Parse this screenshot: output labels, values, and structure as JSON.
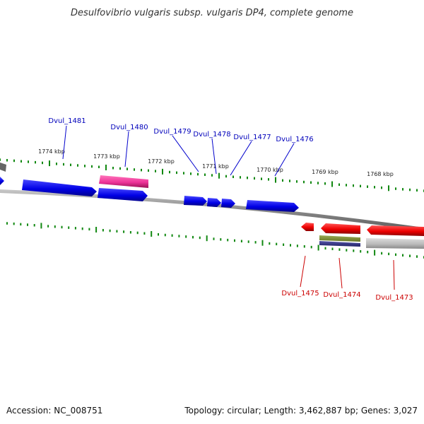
{
  "title": "Desulfovibrio vulgaris subsp. vulgaris DP4, complete genome",
  "footer": {
    "accession": "Accession: NC_008751",
    "summary": "Topology: circular; Length: 3,462,887 bp; Genes: 3,027"
  },
  "colors": {
    "forward_gene": "#0000ee",
    "reverse_gene": "#ee0000",
    "pink_feature": "#ee3399",
    "gray_feature": "#bbbbbb",
    "olive_feature": "#778833",
    "navy_feature": "#333388",
    "backbone": "#8a8a8a",
    "tick": "#118811",
    "forward_label": "#0000bb",
    "reverse_label": "#cc0000"
  },
  "ticks": [
    "1774 kbp",
    "1773 kbp",
    "1772 kbp",
    "1771 kbp",
    "1770 kbp",
    "1769 kbp",
    "1768 kbp"
  ],
  "forward_labels": [
    "Dvul_1481",
    "Dvul_1480",
    "Dvul_1479",
    "Dvul_1478",
    "Dvul_1477",
    "Dvul_1476"
  ],
  "reverse_labels": [
    "Dvul_1475",
    "Dvul_1474",
    "Dvul_1473"
  ]
}
